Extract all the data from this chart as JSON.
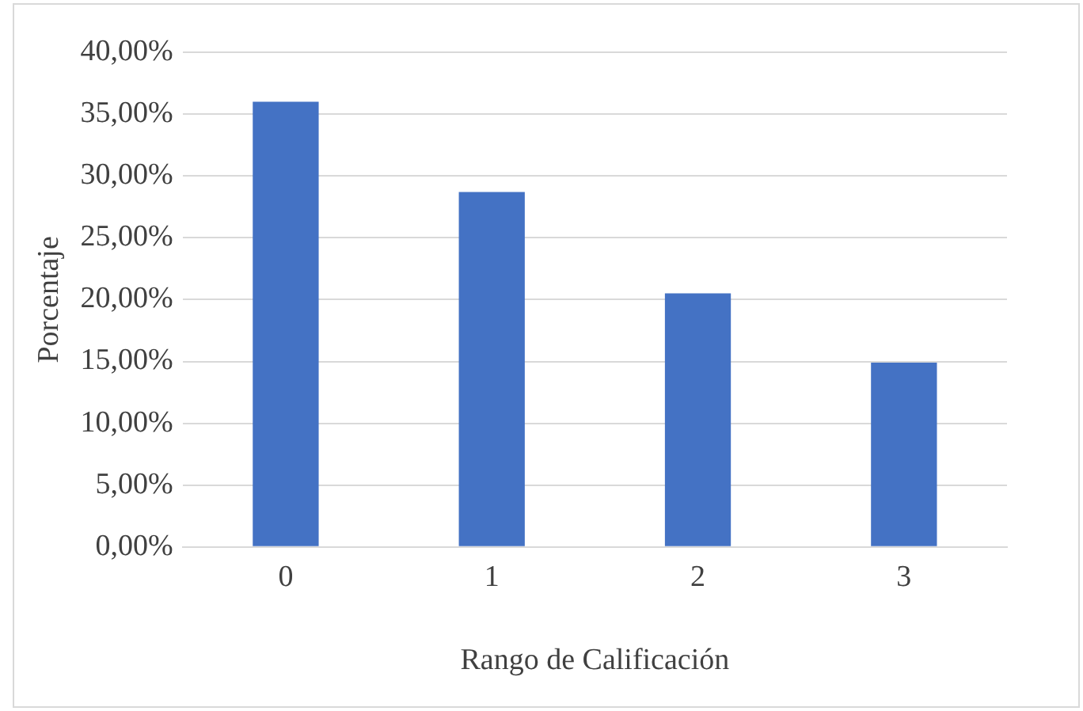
{
  "chart_data": {
    "type": "bar",
    "xlabel": "Rango de Calificación",
    "ylabel": "Porcentaje",
    "categories": [
      "0",
      "1",
      "2",
      "3"
    ],
    "values": [
      36.0,
      28.7,
      20.5,
      14.9
    ],
    "color": "#4472c4",
    "ylim": [
      0,
      40
    ],
    "yticks": [
      {
        "value": 0,
        "label": "0,00%"
      },
      {
        "value": 5,
        "label": "5,00%"
      },
      {
        "value": 10,
        "label": "10,00%"
      },
      {
        "value": 15,
        "label": "15,00%"
      },
      {
        "value": 20,
        "label": "20,00%"
      },
      {
        "value": 25,
        "label": "25,00%"
      },
      {
        "value": 30,
        "label": "30,00%"
      },
      {
        "value": 35,
        "label": "35,00%"
      },
      {
        "value": 40,
        "label": "40,00%"
      }
    ],
    "grid": "y",
    "legend": false
  }
}
